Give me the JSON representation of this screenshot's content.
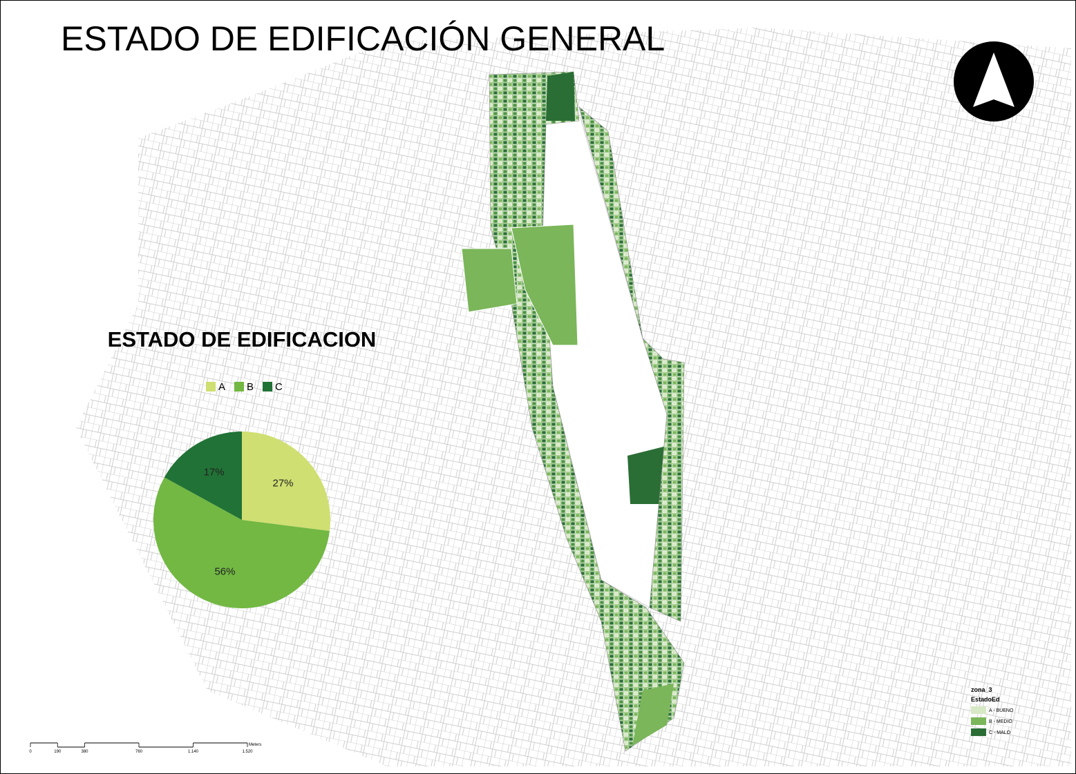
{
  "title": "ESTADO DE EDIFICACIÓN GENERAL",
  "chart_data": {
    "type": "pie",
    "title": "ESTADO DE EDIFICACION",
    "categories": [
      "A",
      "B",
      "C"
    ],
    "values": [
      27,
      56,
      17
    ],
    "value_labels": [
      "27%",
      "56%",
      "17%"
    ],
    "colors": [
      "#d0df72",
      "#72b843",
      "#217236"
    ]
  },
  "map_legend": {
    "layer": "zona_3",
    "field": "EstadoEd",
    "items": [
      {
        "label": "A - BUENO",
        "color": "#d7e8c5"
      },
      {
        "label": "B - MEDIO",
        "color": "#7bb65a"
      },
      {
        "label": "C - MALO",
        "color": "#2a6e35"
      }
    ]
  },
  "scale_bar": {
    "unit": "Meters",
    "xlim": [
      0,
      1520
    ],
    "ticks": [
      0,
      190,
      380,
      760,
      {
        "value": 1140,
        "label": "1.140"
      },
      {
        "value": 1520,
        "label": "1.520"
      }
    ]
  }
}
